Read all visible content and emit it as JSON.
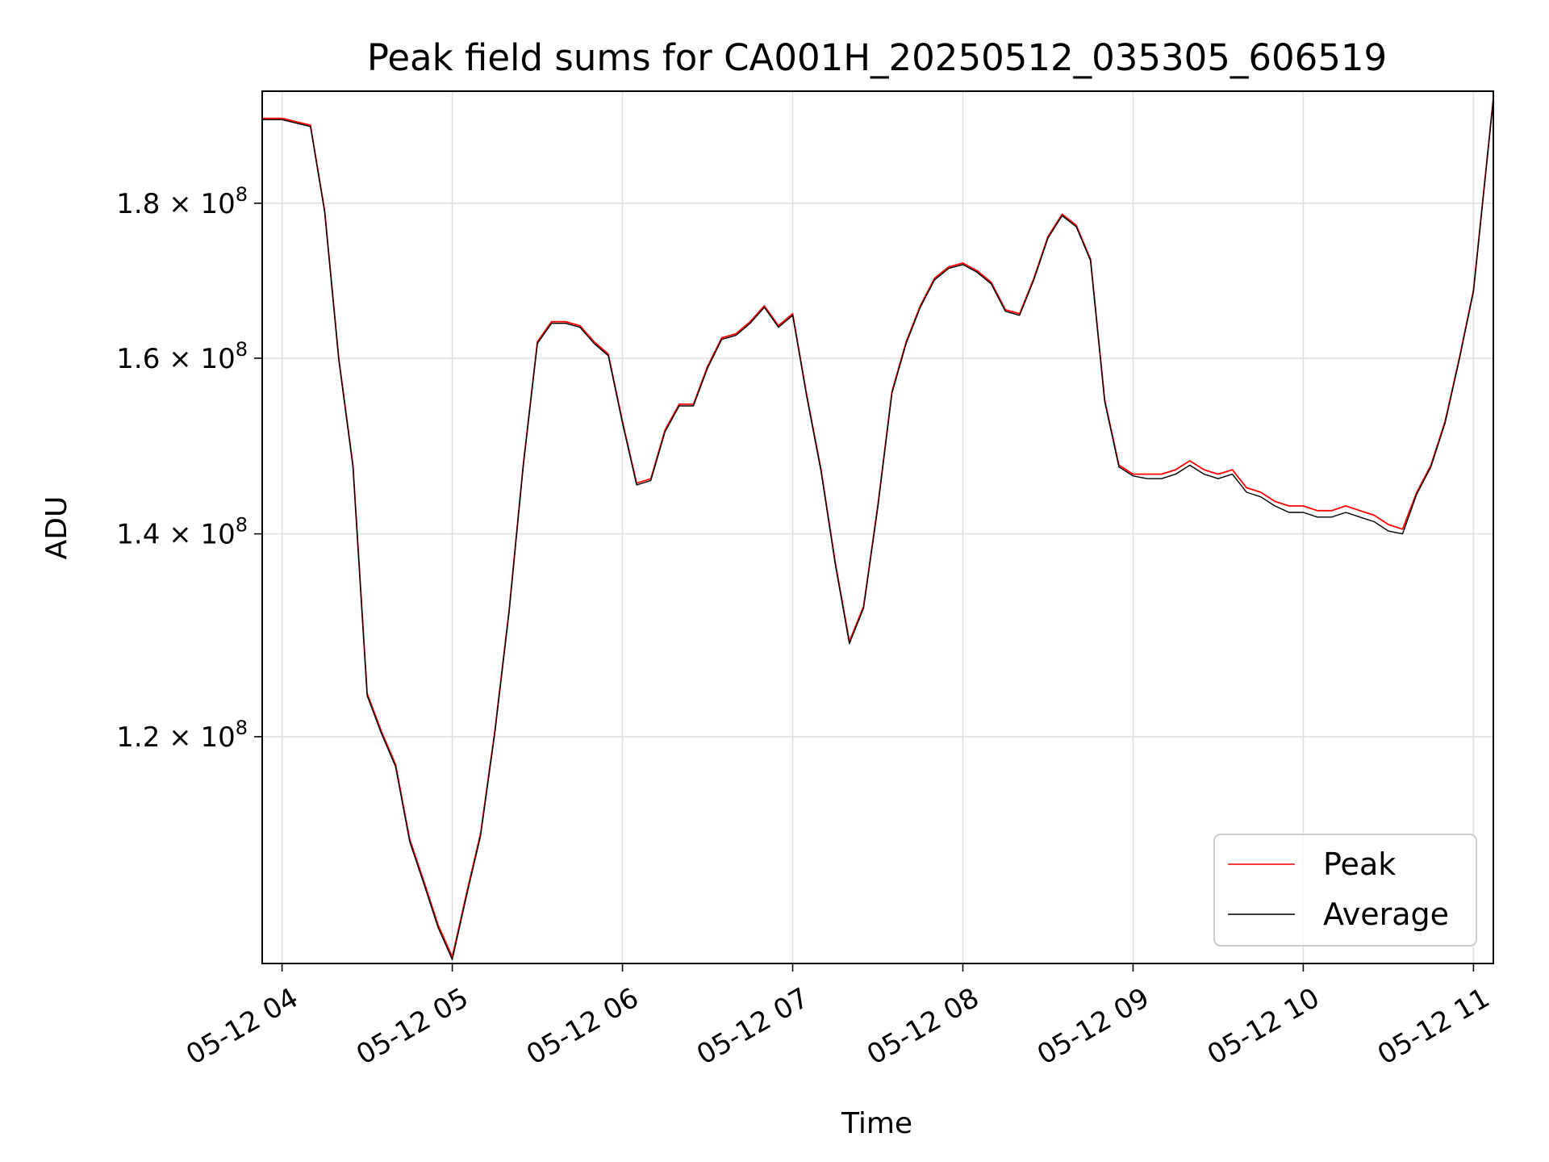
{
  "chart_data": {
    "type": "line",
    "title": "Peak field sums for CA001H_20250512_035305_606519",
    "xlabel": "Time",
    "ylabel": "ADU",
    "yscale": "log",
    "grid": true,
    "legend_position": "lower-right",
    "xlim": [
      "05-12 03:53",
      "05-12 11:07"
    ],
    "ylim": [
      101000000,
      196000000
    ],
    "x_ticks": [
      "05-12 04",
      "05-12 05",
      "05-12 06",
      "05-12 07",
      "05-12 08",
      "05-12 09",
      "05-12 10",
      "05-12 11"
    ],
    "y_ticks": [
      {
        "value": 120000000,
        "mantissa": "1.2",
        "times": "×",
        "base": "10",
        "exp": "8"
      },
      {
        "value": 140000000,
        "mantissa": "1.4",
        "times": "×",
        "base": "10",
        "exp": "8"
      },
      {
        "value": 160000000,
        "mantissa": "1.6",
        "times": "×",
        "base": "10",
        "exp": "8"
      },
      {
        "value": 180000000,
        "mantissa": "1.8",
        "times": "×",
        "base": "10",
        "exp": "8"
      }
    ],
    "x": [
      "05-12 03:53",
      "05-12 04:00",
      "05-12 04:05",
      "05-12 04:10",
      "05-12 04:15",
      "05-12 04:20",
      "05-12 04:25",
      "05-12 04:30",
      "05-12 04:35",
      "05-12 04:40",
      "05-12 04:45",
      "05-12 04:50",
      "05-12 04:55",
      "05-12 05:00",
      "05-12 05:05",
      "05-12 05:10",
      "05-12 05:15",
      "05-12 05:20",
      "05-12 05:25",
      "05-12 05:30",
      "05-12 05:35",
      "05-12 05:40",
      "05-12 05:45",
      "05-12 05:50",
      "05-12 05:55",
      "05-12 06:00",
      "05-12 06:05",
      "05-12 06:10",
      "05-12 06:15",
      "05-12 06:20",
      "05-12 06:25",
      "05-12 06:30",
      "05-12 06:35",
      "05-12 06:40",
      "05-12 06:45",
      "05-12 06:50",
      "05-12 06:55",
      "05-12 07:00",
      "05-12 07:05",
      "05-12 07:10",
      "05-12 07:15",
      "05-12 07:20",
      "05-12 07:25",
      "05-12 07:30",
      "05-12 07:35",
      "05-12 07:40",
      "05-12 07:45",
      "05-12 07:50",
      "05-12 07:55",
      "05-12 08:00",
      "05-12 08:05",
      "05-12 08:10",
      "05-12 08:15",
      "05-12 08:20",
      "05-12 08:25",
      "05-12 08:30",
      "05-12 08:35",
      "05-12 08:40",
      "05-12 08:45",
      "05-12 08:50",
      "05-12 08:55",
      "05-12 09:00",
      "05-12 09:05",
      "05-12 09:10",
      "05-12 09:15",
      "05-12 09:20",
      "05-12 09:25",
      "05-12 09:30",
      "05-12 09:35",
      "05-12 09:40",
      "05-12 09:45",
      "05-12 09:50",
      "05-12 09:55",
      "05-12 10:00",
      "05-12 10:05",
      "05-12 10:10",
      "05-12 10:15",
      "05-12 10:20",
      "05-12 10:25",
      "05-12 10:30",
      "05-12 10:35",
      "05-12 10:40",
      "05-12 10:45",
      "05-12 10:50",
      "05-12 10:55",
      "05-12 11:00",
      "05-12 11:05",
      "05-12 11:07"
    ],
    "series": [
      {
        "name": "Peak",
        "color": "#ff0000",
        "values": [
          192000000,
          192000000,
          191500000,
          191000000,
          179000000,
          160000000,
          147500000,
          124000000,
          120500000,
          117500000,
          111000000,
          107500000,
          104000000,
          101500000,
          106500000,
          111500000,
          120500000,
          132000000,
          147500000,
          162000000,
          164500000,
          164500000,
          164000000,
          162000000,
          160500000,
          152500000,
          145500000,
          146000000,
          151500000,
          154500000,
          154500000,
          159000000,
          162500000,
          163000000,
          164500000,
          166500000,
          164000000,
          165500000,
          155500000,
          147000000,
          137000000,
          129000000,
          132500000,
          143000000,
          156000000,
          162000000,
          166500000,
          170000000,
          171500000,
          172000000,
          171000000,
          169500000,
          166000000,
          165500000,
          170000000,
          175500000,
          178500000,
          177000000,
          172500000,
          155000000,
          147500000,
          146500000,
          146500000,
          146500000,
          147000000,
          148000000,
          147000000,
          146500000,
          147000000,
          145000000,
          144500000,
          143500000,
          143000000,
          143000000,
          142500000,
          142500000,
          143000000,
          142500000,
          142000000,
          141000000,
          140500000,
          144500000,
          147500000,
          152500000,
          160000000,
          168500000,
          187000000,
          195000000
        ]
      },
      {
        "name": "Average",
        "color": "#000000",
        "values": [
          191800000,
          191800000,
          191300000,
          190800000,
          178800000,
          159800000,
          147300000,
          123800000,
          120300000,
          117300000,
          110800000,
          107300000,
          103800000,
          101300000,
          106300000,
          111300000,
          120300000,
          131800000,
          147300000,
          161800000,
          164300000,
          164300000,
          163800000,
          161800000,
          160300000,
          152300000,
          145300000,
          145800000,
          151300000,
          154300000,
          154300000,
          158800000,
          162300000,
          162800000,
          164300000,
          166300000,
          163800000,
          165300000,
          155300000,
          146800000,
          136800000,
          128800000,
          132300000,
          142800000,
          155800000,
          161800000,
          166300000,
          169800000,
          171300000,
          171800000,
          170800000,
          169300000,
          165800000,
          165300000,
          169800000,
          175300000,
          178300000,
          176800000,
          172300000,
          154800000,
          147300000,
          146300000,
          146000000,
          146000000,
          146500000,
          147500000,
          146500000,
          146000000,
          146500000,
          144500000,
          144000000,
          143000000,
          142300000,
          142300000,
          141800000,
          141800000,
          142300000,
          141800000,
          141300000,
          140300000,
          140000000,
          144300000,
          147300000,
          152300000,
          159800000,
          168300000,
          186800000,
          194800000
        ]
      }
    ]
  }
}
